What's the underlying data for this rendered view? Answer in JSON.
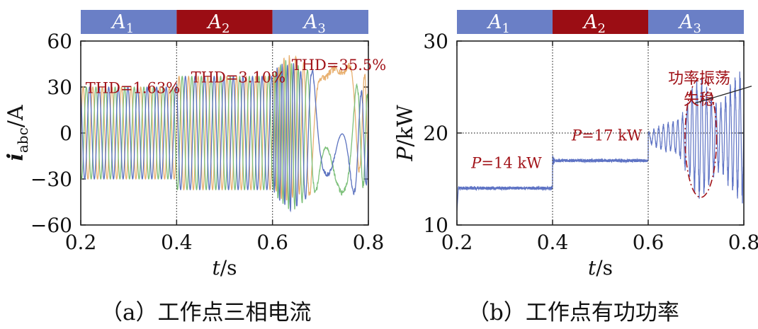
{
  "colors": {
    "phase_a": "#e8b070",
    "phase_b": "#7dc07a",
    "phase_c": "#5b72bf",
    "power": "#5e73c4",
    "segment_a1": "#6a7fc6",
    "segment_a2": "#9b0d14",
    "segment_a3": "#6a7fc6",
    "annotation": "#a11218",
    "dotted": "#333333"
  },
  "captions": {
    "a": "（a）工作点三相电流",
    "b": "（b）工作点有功功率"
  },
  "chart_data": [
    {
      "type": "line",
      "title": "工作点三相电流",
      "xlabel": "t/s",
      "ylabel": "i_abc/A",
      "ylabel_main": "i",
      "ylabel_sub": "abc",
      "ylabel_unit": "/A",
      "xlim": [
        0.2,
        0.8
      ],
      "ylim": [
        -60,
        60
      ],
      "xticks": [
        0.2,
        0.4,
        0.6,
        0.8
      ],
      "xtick_labels": [
        "0.2",
        "0.4",
        "0.6",
        "0.8"
      ],
      "yticks": [
        60,
        30,
        0,
        -30,
        -60
      ],
      "ytick_labels": [
        "60",
        "30",
        "0",
        "−30",
        "−60"
      ],
      "segments": [
        {
          "main": "A",
          "sub": "1",
          "x0": 0.2,
          "x1": 0.4
        },
        {
          "main": "A",
          "sub": "2",
          "x0": 0.4,
          "x1": 0.6
        },
        {
          "main": "A",
          "sub": "3",
          "x0": 0.6,
          "x1": 0.8
        }
      ],
      "dividers": [
        0.4,
        0.6
      ],
      "series": [
        {
          "name": "a",
          "frequency_hz": 50,
          "phase_deg": 0
        },
        {
          "name": "b",
          "frequency_hz": 50,
          "phase_deg": -120
        },
        {
          "name": "c",
          "frequency_hz": 50,
          "phase_deg": 120
        }
      ],
      "amplitude_by_period": [
        {
          "t0": 0.2,
          "t1": 0.4,
          "amplitude": 30
        },
        {
          "t0": 0.4,
          "t1": 0.6,
          "amplitude": 37
        },
        {
          "t0": 0.6,
          "t1": 0.8,
          "amplitude_range": [
            35,
            55
          ],
          "note": "unstable oscillation"
        }
      ],
      "annotations": [
        {
          "text": "THD=1.63%",
          "x": 0.21,
          "y": 26
        },
        {
          "text": "THD=3.10%",
          "x": 0.43,
          "y": 33
        },
        {
          "text": "THD=35.5%",
          "x": 0.64,
          "y": 41
        }
      ]
    },
    {
      "type": "line",
      "title": "工作点有功功率",
      "xlabel": "t/s",
      "ylabel": "P/kW",
      "ylabel_main": "P",
      "ylabel_unit": "/kW",
      "xlim": [
        0.2,
        0.8
      ],
      "ylim": [
        10,
        30
      ],
      "xticks": [
        0.2,
        0.4,
        0.6,
        0.8
      ],
      "xtick_labels": [
        "0.2",
        "0.4",
        "0.6",
        "0.8"
      ],
      "yticks": [
        30,
        20,
        10
      ],
      "ytick_labels": [
        "30",
        "20",
        "10"
      ],
      "segments": [
        {
          "main": "A",
          "sub": "1",
          "x0": 0.2,
          "x1": 0.4
        },
        {
          "main": "A",
          "sub": "2",
          "x0": 0.4,
          "x1": 0.6
        },
        {
          "main": "A",
          "sub": "3",
          "x0": 0.6,
          "x1": 0.8
        }
      ],
      "dividers": [
        0.4,
        0.6
      ],
      "hline": 20,
      "series": [
        {
          "name": "P",
          "levels": [
            {
              "t0": 0.2,
              "t1": 0.4,
              "value": 14
            },
            {
              "t0": 0.4,
              "t1": 0.6,
              "value": 17
            },
            {
              "t0": 0.6,
              "t1": 0.8,
              "value": 19.5,
              "oscillation_range": [
                13,
                26.5
              ]
            }
          ]
        }
      ],
      "annotations": [
        {
          "main": "P",
          "text": "=14 kW",
          "x": 0.23,
          "y": 16.2
        },
        {
          "main": "P",
          "text": "=17 kW",
          "x": 0.44,
          "y": 19.2
        },
        {
          "lines": [
            "功率振荡",
            "失稳"
          ],
          "x": 0.6,
          "y": 25.4
        }
      ],
      "ellipse": {
        "cx": 0.71,
        "cy": 19.5,
        "rx": 0.033,
        "ry": 6.5
      }
    }
  ]
}
